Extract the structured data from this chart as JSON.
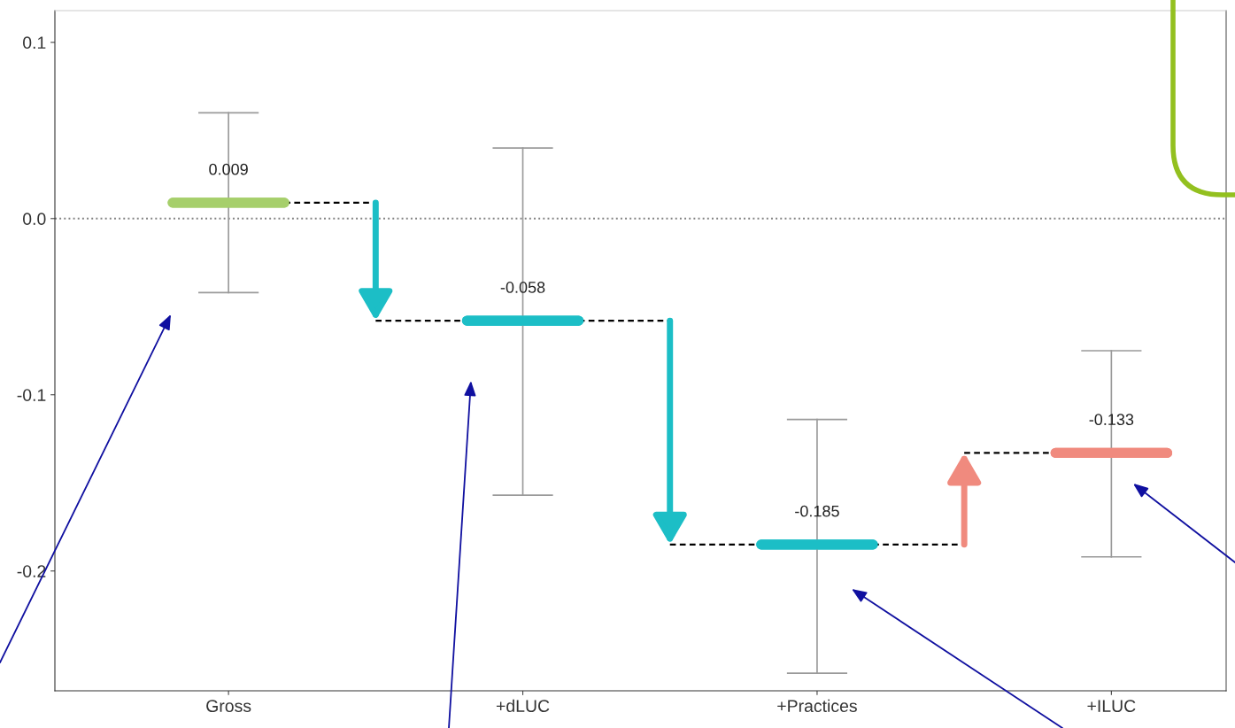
{
  "chart_data": {
    "type": "box",
    "categories": [
      "Gross",
      "+dLUC",
      "+Practices",
      "+ILUC"
    ],
    "boxes": [
      {
        "low": -0.042,
        "q1": 0.009,
        "median": 0.009,
        "q3": 0.009,
        "high": 0.06
      },
      {
        "low": -0.157,
        "q1": -0.058,
        "median": -0.058,
        "q3": -0.058,
        "high": 0.04
      },
      {
        "low": -0.258,
        "q1": -0.185,
        "median": -0.185,
        "q3": -0.185,
        "high": -0.114
      },
      {
        "low": -0.192,
        "q1": -0.133,
        "median": -0.133,
        "q3": -0.133,
        "high": -0.075
      }
    ],
    "colors": [
      "#a6cf6b",
      "#1cbec6",
      "#1cbec6",
      "#f08a7e"
    ],
    "value_labels": [
      "0.009",
      "-0.058",
      "-0.185",
      "-0.133"
    ],
    "ylim": [
      -0.268,
      0.118
    ],
    "yticks": [
      {
        "value": 0.1,
        "label": "0.1"
      },
      {
        "value": 0.0,
        "label": "0.0"
      },
      {
        "value": -0.1,
        "label": "-0.1"
      },
      {
        "value": -0.2,
        "label": "-0.2"
      }
    ],
    "ref_lines": [
      {
        "axis": "y",
        "value": 0,
        "line_style": "dotted",
        "color": "#808080"
      }
    ],
    "grid": false
  }
}
